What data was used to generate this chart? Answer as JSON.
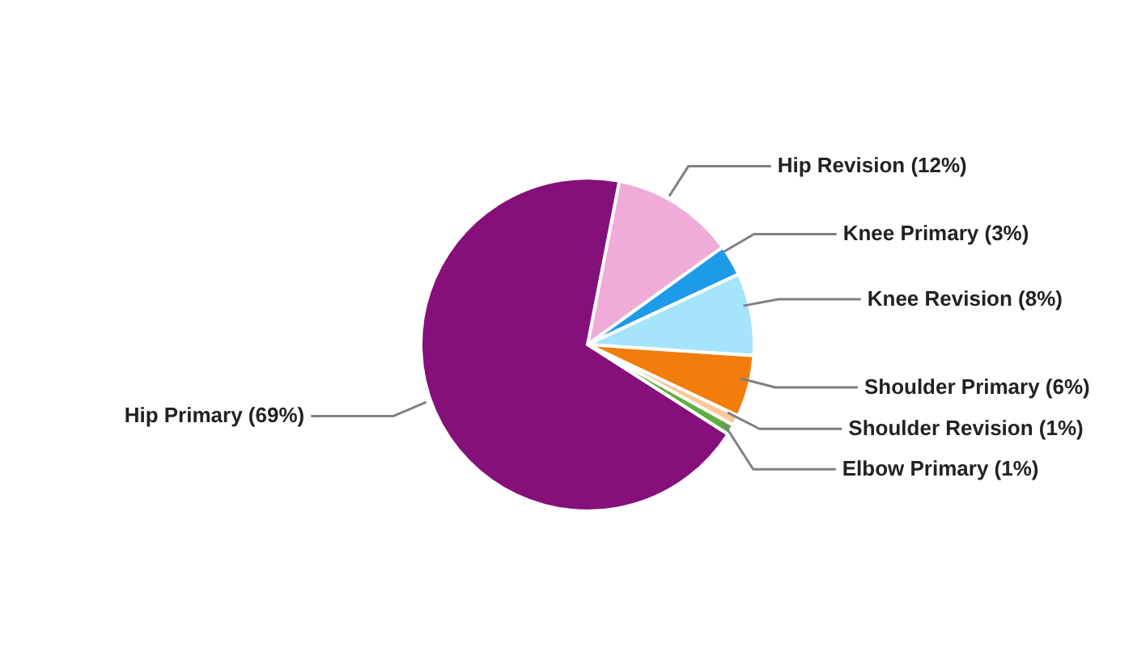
{
  "chart_data": {
    "type": "pie",
    "categories": [
      "Hip Revision (12%)",
      "Knee Primary (3%)",
      "Knee Revision (8%)",
      "Shoulder Primary (6%)",
      "Shoulder Revision (1%)",
      "Elbow Primary (1%)",
      "Hip Primary (69%)"
    ],
    "values": [
      12,
      3,
      8,
      6,
      1,
      1,
      69
    ],
    "colors": [
      "#f0acd8",
      "#1e9be8",
      "#a6e4fb",
      "#f07d0c",
      "#f8c79a",
      "#5cb03c",
      "#85107a"
    ],
    "legend": false
  }
}
